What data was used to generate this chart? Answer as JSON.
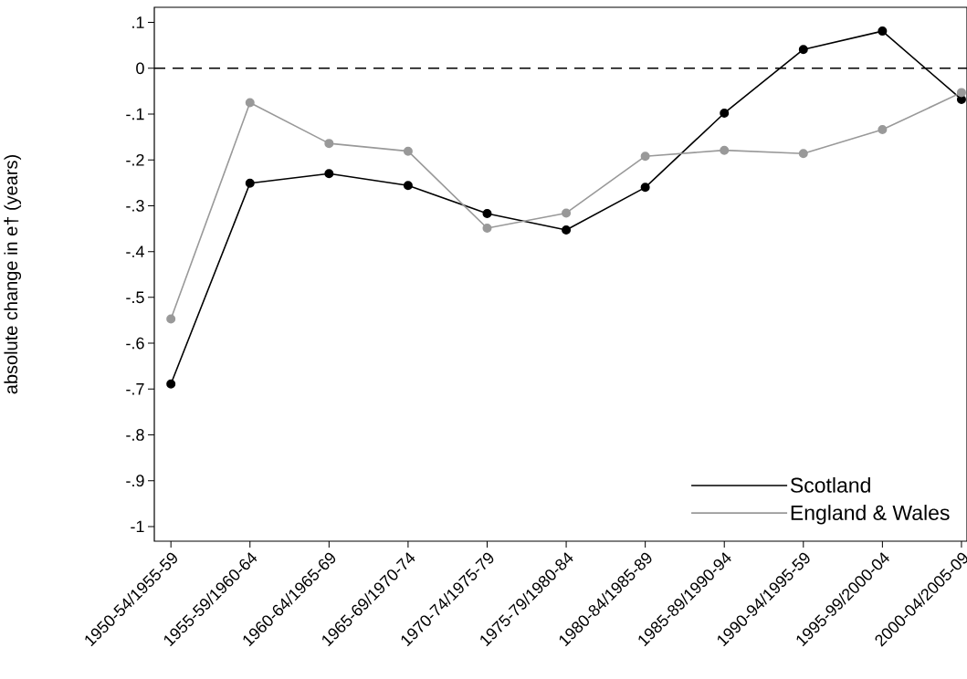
{
  "chart_data": {
    "type": "line",
    "ylabel": "absolute change in e† (years)",
    "categories": [
      "1950-54/1955-59",
      "1955-59/1960-64",
      "1960-64/1965-69",
      "1965-69/1970-74",
      "1970-74/1975-79",
      "1975-79/1980-84",
      "1980-84/1985-89",
      "1985-89/1990-94",
      "1990-94/1995-59",
      "1995-99/2000-04",
      "2000-04/2005-09"
    ],
    "series": [
      {
        "name": "Scotland",
        "color": "#000000",
        "values": [
          -0.689,
          -0.251,
          -0.23,
          -0.256,
          -0.317,
          -0.353,
          -0.26,
          -0.098,
          0.041,
          0.081,
          -0.068
        ]
      },
      {
        "name": "England & Wales",
        "color": "#999999",
        "values": [
          -0.547,
          -0.075,
          -0.164,
          -0.181,
          -0.349,
          -0.316,
          -0.192,
          -0.179,
          -0.186,
          -0.134,
          -0.053
        ]
      }
    ],
    "ylim": [
      -1.032,
      0.133
    ],
    "yticks": [
      {
        "value": 0.1,
        "label": ".1"
      },
      0,
      {
        "value": -0.1,
        "label": "-.1"
      },
      {
        "value": -0.2,
        "label": "-.2"
      },
      {
        "value": -0.3,
        "label": "-.3"
      },
      {
        "value": -0.4,
        "label": "-.4"
      },
      {
        "value": -0.5,
        "label": "-.5"
      },
      {
        "value": -0.6,
        "label": "-.6"
      },
      {
        "value": -0.7,
        "label": "-.7"
      },
      {
        "value": -0.8,
        "label": "-.8"
      },
      {
        "value": -0.9,
        "label": "-.9"
      },
      {
        "value": -1,
        "label": "-1"
      }
    ],
    "ref_lines": [
      {
        "axis": "y",
        "value": 0,
        "color": "#000000",
        "line_style": "dashed"
      }
    ],
    "legend": "bottom right",
    "marker": "circle",
    "line_style": "solid",
    "grid": false
  }
}
